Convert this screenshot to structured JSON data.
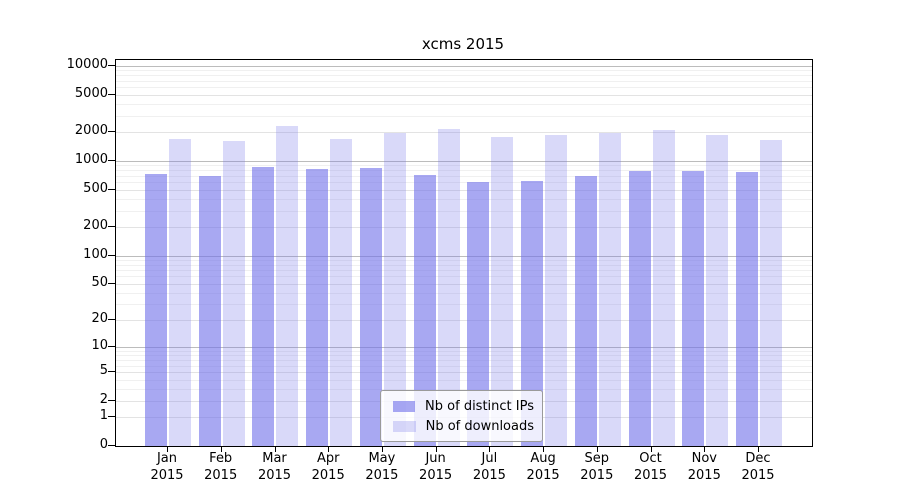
{
  "title": "xcms 2015",
  "colors": {
    "ips_bar": "rgba(115,115,234,0.62)",
    "downloads_bar": "rgba(120,120,232,0.28)",
    "grid_decade": "#bcbcbc",
    "grid_labeled": "#e3e3e3",
    "grid_minor": "#f0f0f0",
    "axis": "#000000",
    "legend_border": "#9a9a9a"
  },
  "chart_data": {
    "type": "bar",
    "title": "xcms 2015",
    "categories": [
      "Jan 2015",
      "Feb 2015",
      "Mar 2015",
      "Apr 2015",
      "May 2015",
      "Jun 2015",
      "Jul 2015",
      "Aug 2015",
      "Sep 2015",
      "Oct 2015",
      "Nov 2015",
      "Dec 2015"
    ],
    "series": [
      {
        "name": "Nb of distinct IPs",
        "values": [
          730,
          690,
          860,
          820,
          840,
          720,
          600,
          620,
          700,
          780,
          780,
          760
        ]
      },
      {
        "name": "Nb of downloads",
        "values": [
          1690,
          1620,
          2350,
          1700,
          1950,
          2150,
          1790,
          1880,
          1950,
          2100,
          1870,
          1660
        ]
      }
    ],
    "xlabel": "",
    "ylabel": "",
    "y_scale": "log1p",
    "y_ticks": [
      0,
      1,
      2,
      5,
      10,
      20,
      50,
      100,
      200,
      500,
      1000,
      2000,
      5000,
      10000
    ],
    "ylim": [
      0,
      11500
    ],
    "grid": true,
    "legend_position": "lower center"
  }
}
